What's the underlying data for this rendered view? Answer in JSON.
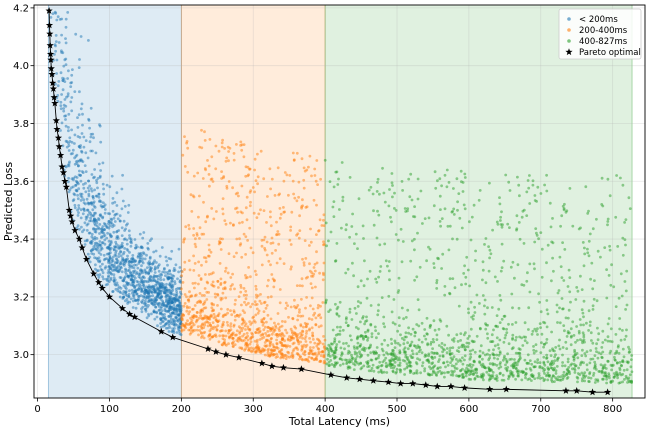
{
  "chart_data": {
    "type": "scatter",
    "xlabel": "Total Latency (ms)",
    "ylabel": "Predicted Loss",
    "xlim": [
      -5,
      845
    ],
    "ylim": [
      2.85,
      4.21
    ],
    "x_ticks": [
      0,
      100,
      200,
      300,
      400,
      500,
      600,
      700,
      800
    ],
    "y_ticks": [
      3.0,
      3.2,
      3.4,
      3.6,
      3.8,
      4.0,
      4.2
    ],
    "x_tick_labels": [
      "0",
      "100",
      "200",
      "300",
      "400",
      "500",
      "600",
      "700",
      "800"
    ],
    "y_tick_labels": [
      "3.0",
      "3.2",
      "3.4",
      "3.6",
      "3.8",
      "4.0",
      "4.2"
    ],
    "grid": true,
    "legend_position": "top-right",
    "bands": [
      {
        "x0": 15,
        "x1": 200,
        "color": "#1f77b4"
      },
      {
        "x0": 200,
        "x1": 400,
        "color": "#ff7f0e"
      },
      {
        "x0": 400,
        "x1": 827,
        "color": "#2ca02c"
      }
    ],
    "series": [
      {
        "name": "< 200ms",
        "color": "#1f77b4",
        "x_range": [
          15,
          200
        ],
        "marker": "dot"
      },
      {
        "name": "200-400ms",
        "color": "#ff7f0e",
        "x_range": [
          200,
          400
        ],
        "marker": "dot"
      },
      {
        "name": "400-827ms",
        "color": "#2ca02c",
        "x_range": [
          400,
          827
        ],
        "marker": "dot"
      },
      {
        "name": "Pareto optimal",
        "color": "#000000",
        "marker": "star",
        "points": [
          [
            16,
            4.19
          ],
          [
            16.5,
            4.14
          ],
          [
            17,
            4.11
          ],
          [
            17.5,
            4.07
          ],
          [
            18,
            4.04
          ],
          [
            18.5,
            4.02
          ],
          [
            19,
            3.99
          ],
          [
            20,
            3.97
          ],
          [
            21,
            3.94
          ],
          [
            22,
            3.92
          ],
          [
            23,
            3.89
          ],
          [
            24,
            3.87
          ],
          [
            26,
            3.81
          ],
          [
            27,
            3.78
          ],
          [
            29,
            3.75
          ],
          [
            30,
            3.72
          ],
          [
            32,
            3.69
          ],
          [
            34,
            3.65
          ],
          [
            36,
            3.63
          ],
          [
            38,
            3.6
          ],
          [
            40,
            3.58
          ],
          [
            44,
            3.5
          ],
          [
            46,
            3.48
          ],
          [
            48,
            3.46
          ],
          [
            52,
            3.43
          ],
          [
            58,
            3.4
          ],
          [
            62,
            3.37
          ],
          [
            68,
            3.33
          ],
          [
            78,
            3.28
          ],
          [
            85,
            3.25
          ],
          [
            90,
            3.23
          ],
          [
            100,
            3.2
          ],
          [
            118,
            3.16
          ],
          [
            128,
            3.14
          ],
          [
            135,
            3.13
          ],
          [
            172,
            3.08
          ],
          [
            188,
            3.06
          ],
          [
            237,
            3.02
          ],
          [
            248,
            3.01
          ],
          [
            262,
            3.0
          ],
          [
            280,
            2.99
          ],
          [
            312,
            2.97
          ],
          [
            326,
            2.96
          ],
          [
            342,
            2.955
          ],
          [
            367,
            2.95
          ],
          [
            408,
            2.93
          ],
          [
            430,
            2.92
          ],
          [
            448,
            2.915
          ],
          [
            467,
            2.91
          ],
          [
            488,
            2.905
          ],
          [
            505,
            2.9
          ],
          [
            522,
            2.9
          ],
          [
            540,
            2.895
          ],
          [
            556,
            2.89
          ],
          [
            575,
            2.89
          ],
          [
            594,
            2.885
          ],
          [
            629,
            2.88
          ],
          [
            652,
            2.88
          ],
          [
            735,
            2.875
          ],
          [
            750,
            2.875
          ],
          [
            772,
            2.87
          ],
          [
            793,
            2.87
          ]
        ]
      }
    ]
  }
}
